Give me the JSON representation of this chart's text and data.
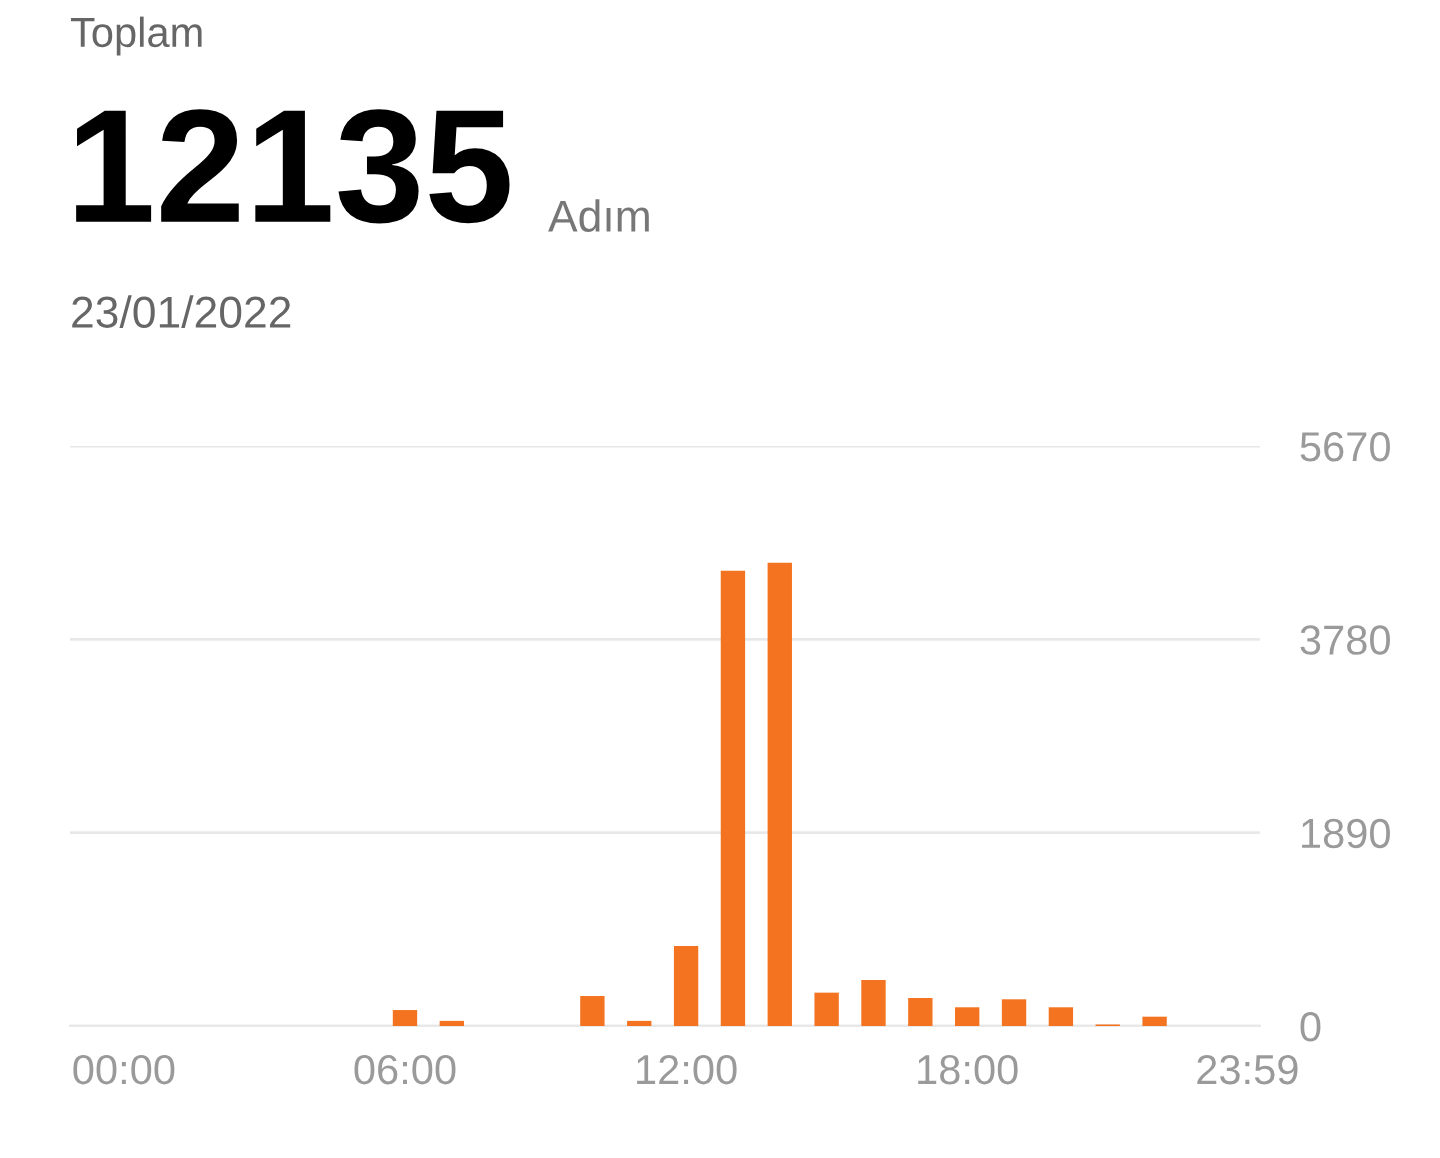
{
  "chart_data": {
    "type": "bar",
    "annotations": [
      "Toplam",
      "12135",
      "Adım",
      "23/01/2022"
    ],
    "x": [
      6,
      7,
      10,
      11,
      12,
      13,
      14,
      15,
      16,
      17,
      18,
      19,
      20,
      21,
      22
    ],
    "series": [
      {
        "color": "#f47320",
        "values": [
          156,
          50,
          293,
          50,
          782,
          4451,
          4529,
          326,
          450,
          274,
          183,
          261,
          183,
          15,
          91
        ]
      }
    ],
    "xlim": [
      -1.15,
      24.25
    ],
    "xticks": [
      {
        "value": 0,
        "label": "00:00"
      },
      {
        "value": 6,
        "label": "06:00"
      },
      {
        "value": 12,
        "label": "12:00"
      },
      {
        "value": 18,
        "label": "18:00"
      },
      {
        "value": 23.98,
        "label": "23:59"
      }
    ],
    "ylim": [
      0,
      5670
    ],
    "yticks": [
      0,
      1890,
      3780,
      5670
    ],
    "grid": "y",
    "legend": false
  }
}
